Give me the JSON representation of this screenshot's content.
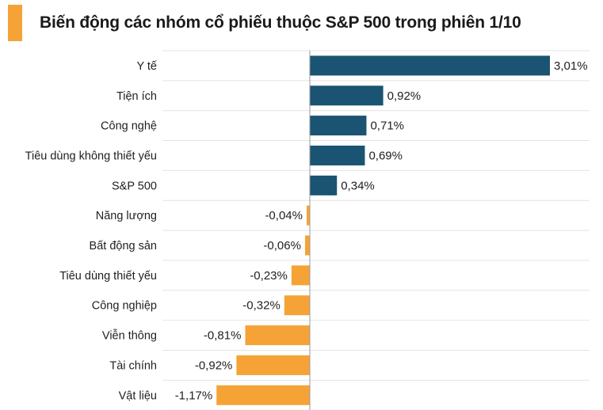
{
  "title": "Biến động các nhóm cổ phiếu thuộc S&P 500 trong phiên 1/10",
  "colors": {
    "positive": "#1a5472",
    "negative": "#f5a337",
    "accent": "#f5a337",
    "grid": "#e4e4e4",
    "axis": "#9a9a9a"
  },
  "chart_data": {
    "type": "bar",
    "orientation": "horizontal",
    "title": "Biến động các nhóm cổ phiếu thuộc S&P 500 trong phiên 1/10",
    "unit": "%",
    "categories": [
      "Y tế",
      "Tiện ích",
      "Công nghệ",
      "Tiêu dùng không thiết yếu",
      "S&P 500",
      "Năng lượng",
      "Bất động sản",
      "Tiêu dùng thiết yếu",
      "Công nghiệp",
      "Viễn thông",
      "Tài chính",
      "Vật liệu"
    ],
    "values": [
      3.01,
      0.92,
      0.71,
      0.69,
      0.34,
      -0.04,
      -0.06,
      -0.23,
      -0.32,
      -0.81,
      -0.92,
      -1.17
    ],
    "labels": [
      "3,01%",
      "0,92%",
      "0,71%",
      "0,69%",
      "0,34%",
      "-0,04%",
      "-0,06%",
      "-0,23%",
      "-0,32%",
      "-0,81%",
      "-0,92%",
      "-1,17%"
    ],
    "xlim": [
      -1.17,
      3.01
    ],
    "grid": true,
    "legend": "none"
  }
}
